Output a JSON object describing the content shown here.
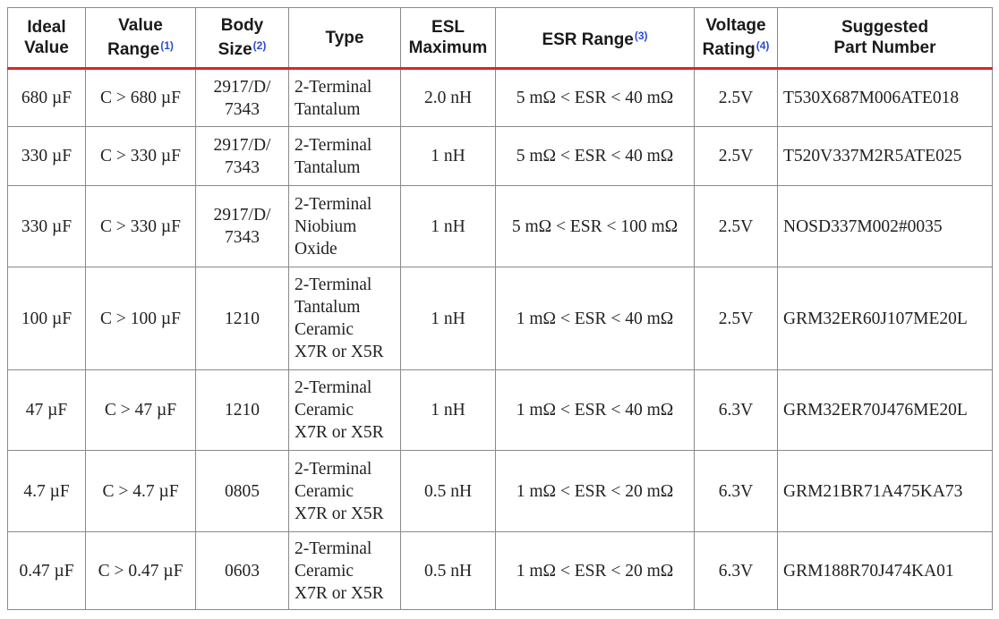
{
  "table": {
    "header": [
      {
        "lines": [
          "Ideal",
          "Value"
        ]
      },
      {
        "lines": [
          "Value",
          "Range"
        ],
        "note": "(1)"
      },
      {
        "lines": [
          "Body",
          "Size"
        ],
        "note": "(2)"
      },
      {
        "lines": [
          "Type"
        ]
      },
      {
        "lines": [
          "ESL",
          "Maximum"
        ]
      },
      {
        "lines": [
          "ESR Range"
        ],
        "note": "(3)"
      },
      {
        "lines": [
          "Voltage",
          "Rating"
        ],
        "note": "(4)"
      },
      {
        "lines": [
          "Suggested",
          "Part Number"
        ]
      }
    ],
    "rows": [
      [
        "680 µF",
        "C > 680 µF",
        [
          "2917/D/",
          "7343"
        ],
        [
          "2-Terminal",
          "Tantalum"
        ],
        "2.0 nH",
        "5 mΩ < ESR < 40 mΩ",
        "2.5V",
        "T530X687M006ATE018"
      ],
      [
        "330 µF",
        "C > 330 µF",
        [
          "2917/D/",
          "7343"
        ],
        [
          "2-Terminal",
          "Tantalum"
        ],
        "1 nH",
        "5 mΩ < ESR < 40 mΩ",
        "2.5V",
        "T520V337M2R5ATE025"
      ],
      [
        "330 µF",
        "C > 330 µF",
        [
          "2917/D/",
          "7343"
        ],
        [
          "2-Terminal",
          "Niobium",
          "Oxide"
        ],
        "1 nH",
        "5 mΩ < ESR < 100 mΩ",
        "2.5V",
        "NOSD337M002#0035"
      ],
      [
        "100 µF",
        "C > 100 µF",
        "1210",
        [
          "2-Terminal",
          "Tantalum",
          "Ceramic",
          "X7R or X5R"
        ],
        "1 nH",
        "1 mΩ < ESR < 40 mΩ",
        "2.5V",
        "GRM32ER60J107ME20L"
      ],
      [
        "47 µF",
        "C > 47 µF",
        "1210",
        [
          "2-Terminal",
          "Ceramic",
          "X7R or X5R"
        ],
        "1 nH",
        "1 mΩ < ESR < 40 mΩ",
        "6.3V",
        "GRM32ER70J476ME20L"
      ],
      [
        "4.7 µF",
        "C > 4.7 µF",
        "0805",
        [
          "2-Terminal",
          "Ceramic",
          "X7R or X5R"
        ],
        "0.5 nH",
        "1 mΩ < ESR < 20 mΩ",
        "6.3V",
        "GRM21BR71A475KA73"
      ],
      [
        "0.47 µF",
        "C > 0.47 µF",
        "0603",
        [
          "2-Terminal",
          "Ceramic",
          "X7R or X5R"
        ],
        "0.5 nH",
        "1 mΩ < ESR < 20 mΩ",
        "6.3V",
        "GRM188R70J474KA01"
      ]
    ]
  }
}
